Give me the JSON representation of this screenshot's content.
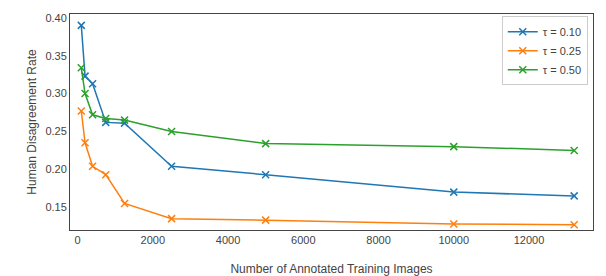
{
  "chart_data": {
    "type": "line",
    "xlabel": "Number of Annotated Training Images",
    "ylabel": "Human Disagreement Rate",
    "x": [
      100,
      200,
      400,
      750,
      1250,
      2500,
      5000,
      10000,
      13200
    ],
    "series": [
      {
        "name": "τ = 0.10",
        "color": "#1f77b4",
        "values": [
          0.39,
          0.323,
          0.313,
          0.262,
          0.261,
          0.204,
          0.193,
          0.17,
          0.165
        ]
      },
      {
        "name": "τ = 0.25",
        "color": "#ff7f0e",
        "values": [
          0.277,
          0.235,
          0.204,
          0.193,
          0.155,
          0.135,
          0.133,
          0.128,
          0.127
        ]
      },
      {
        "name": "τ = 0.50",
        "color": "#2ca02c",
        "values": [
          0.334,
          0.3,
          0.272,
          0.267,
          0.265,
          0.25,
          0.234,
          0.23,
          0.225
        ]
      }
    ],
    "xlim": [
      -200,
      13700
    ],
    "ylim": [
      0.12,
      0.405
    ],
    "xticks": [
      0,
      2000,
      4000,
      6000,
      8000,
      10000,
      12000
    ],
    "yticks": [
      0.15,
      {
        "value": 0.2,
        "label": "0.20"
      },
      0.25,
      {
        "value": 0.3,
        "label": "0.30"
      },
      0.35,
      {
        "value": 0.4,
        "label": "0.40"
      }
    ],
    "marker": "x",
    "line_style": "solid",
    "legend": "upper right",
    "grid": false
  }
}
